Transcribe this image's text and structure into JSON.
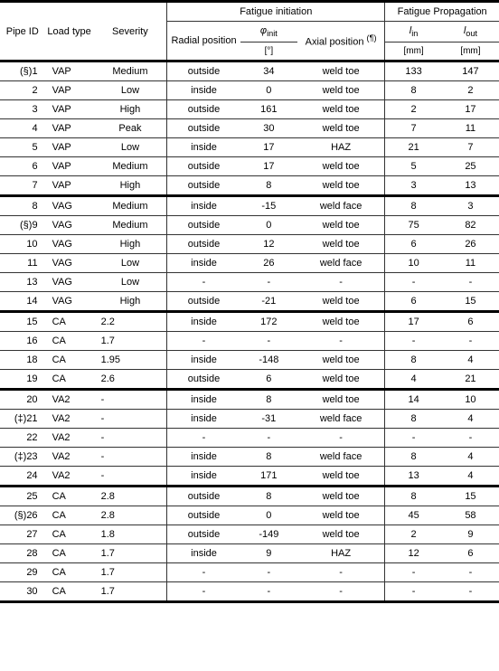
{
  "headers": {
    "pipe_id": "Pipe ID",
    "load_type": "Load type",
    "severity": "Severity",
    "fatigue_initiation": "Fatigue initiation",
    "fatigue_propagation": "Fatigue Propagation",
    "radial_position": "Radial position",
    "phi_init_html": "<i>φ</i><sub>init</sub>",
    "phi_unit": "[°]",
    "axial_position_html": "Axial position <sup>(¶)</sup>",
    "l_in_html": "<i>l</i><sub>in</sub>",
    "l_out_html": "<i>l</i><sub>out</sub>",
    "mm": "[mm]"
  },
  "groups": [
    {
      "rows": [
        {
          "id": "(§)1",
          "load": "VAP",
          "sev": "Medium",
          "rad": "outside",
          "phi": "34",
          "ax": "weld toe",
          "lin": "133",
          "lout": "147"
        },
        {
          "id": "2",
          "load": "VAP",
          "sev": "Low",
          "rad": "inside",
          "phi": "0",
          "ax": "weld toe",
          "lin": "8",
          "lout": "2"
        },
        {
          "id": "3",
          "load": "VAP",
          "sev": "High",
          "rad": "outside",
          "phi": "161",
          "ax": "weld toe",
          "lin": "2",
          "lout": "17"
        },
        {
          "id": "4",
          "load": "VAP",
          "sev": "Peak",
          "rad": "outside",
          "phi": "30",
          "ax": "weld toe",
          "lin": "7",
          "lout": "11"
        },
        {
          "id": "5",
          "load": "VAP",
          "sev": "Low",
          "rad": "inside",
          "phi": "17",
          "ax": "HAZ",
          "lin": "21",
          "lout": "7"
        },
        {
          "id": "6",
          "load": "VAP",
          "sev": "Medium",
          "rad": "outside",
          "phi": "17",
          "ax": "weld toe",
          "lin": "5",
          "lout": "25"
        },
        {
          "id": "7",
          "load": "VAP",
          "sev": "High",
          "rad": "outside",
          "phi": "8",
          "ax": "weld toe",
          "lin": "3",
          "lout": "13"
        }
      ]
    },
    {
      "rows": [
        {
          "id": "8",
          "load": "VAG",
          "sev": "Medium",
          "rad": "inside",
          "phi": "-15",
          "ax": "weld face",
          "lin": "8",
          "lout": "3"
        },
        {
          "id": "(§)9",
          "load": "VAG",
          "sev": "Medium",
          "rad": "outside",
          "phi": "0",
          "ax": "weld toe",
          "lin": "75",
          "lout": "82"
        },
        {
          "id": "10",
          "load": "VAG",
          "sev": "High",
          "rad": "outside",
          "phi": "12",
          "ax": "weld toe",
          "lin": "6",
          "lout": "26"
        },
        {
          "id": "11",
          "load": "VAG",
          "sev": "Low",
          "rad": "inside",
          "phi": "26",
          "ax": "weld face",
          "lin": "10",
          "lout": "11"
        },
        {
          "id": "13",
          "load": "VAG",
          "sev": "Low",
          "rad": "-",
          "phi": "-",
          "ax": "-",
          "lin": "-",
          "lout": "-"
        },
        {
          "id": "14",
          "load": "VAG",
          "sev": "High",
          "rad": "outside",
          "phi": "-21",
          "ax": "weld toe",
          "lin": "6",
          "lout": "15"
        }
      ]
    },
    {
      "rows": [
        {
          "id": "15",
          "load": "CA",
          "sev": "2.2",
          "sev_left": true,
          "rad": "inside",
          "phi": "172",
          "ax": "weld toe",
          "lin": "17",
          "lout": "6"
        },
        {
          "id": "16",
          "load": "CA",
          "sev": "1.7",
          "sev_left": true,
          "rad": "-",
          "phi": "-",
          "ax": "-",
          "lin": "-",
          "lout": "-"
        },
        {
          "id": "18",
          "load": "CA",
          "sev": "1.95",
          "sev_left": true,
          "rad": "inside",
          "phi": "-148",
          "ax": "weld toe",
          "lin": "8",
          "lout": "4"
        },
        {
          "id": "19",
          "load": "CA",
          "sev": "2.6",
          "sev_left": true,
          "rad": "outside",
          "phi": "6",
          "ax": "weld toe",
          "lin": "4",
          "lout": "21"
        }
      ]
    },
    {
      "rows": [
        {
          "id": "20",
          "load": "VA2",
          "sev": "-",
          "sev_left": true,
          "rad": "inside",
          "phi": "8",
          "ax": "weld toe",
          "lin": "14",
          "lout": "10"
        },
        {
          "id": "(‡)21",
          "load": "VA2",
          "sev": "-",
          "sev_left": true,
          "rad": "inside",
          "phi": "-31",
          "ax": "weld face",
          "lin": "8",
          "lout": "4"
        },
        {
          "id": "22",
          "load": "VA2",
          "sev": "-",
          "sev_left": true,
          "rad": "-",
          "phi": "-",
          "ax": "-",
          "lin": "-",
          "lout": "-"
        },
        {
          "id": "(‡)23",
          "load": "VA2",
          "sev": "-",
          "sev_left": true,
          "rad": "inside",
          "phi": "8",
          "ax": "weld face",
          "lin": "8",
          "lout": "4"
        },
        {
          "id": "24",
          "load": "VA2",
          "sev": "-",
          "sev_left": true,
          "rad": "inside",
          "phi": "171",
          "ax": "weld toe",
          "lin": "13",
          "lout": "4"
        }
      ]
    },
    {
      "rows": [
        {
          "id": "25",
          "load": "CA",
          "sev": "2.8",
          "sev_left": true,
          "rad": "outside",
          "phi": "8",
          "ax": "weld toe",
          "lin": "8",
          "lout": "15"
        },
        {
          "id": "(§)26",
          "load": "CA",
          "sev": "2.8",
          "sev_left": true,
          "rad": "outside",
          "phi": "0",
          "ax": "weld toe",
          "lin": "45",
          "lout": "58"
        },
        {
          "id": "27",
          "load": "CA",
          "sev": "1.8",
          "sev_left": true,
          "rad": "outside",
          "phi": "-149",
          "ax": "weld toe",
          "lin": "2",
          "lout": "9"
        },
        {
          "id": "28",
          "load": "CA",
          "sev": "1.7",
          "sev_left": true,
          "rad": "inside",
          "phi": "9",
          "ax": "HAZ",
          "lin": "12",
          "lout": "6"
        },
        {
          "id": "29",
          "load": "CA",
          "sev": "1.7",
          "sev_left": true,
          "rad": "-",
          "phi": "-",
          "ax": "-",
          "lin": "-",
          "lout": "-"
        },
        {
          "id": "30",
          "load": "CA",
          "sev": "1.7",
          "sev_left": true,
          "rad": "-",
          "phi": "-",
          "ax": "-",
          "lin": "-",
          "lout": "-"
        }
      ]
    }
  ]
}
